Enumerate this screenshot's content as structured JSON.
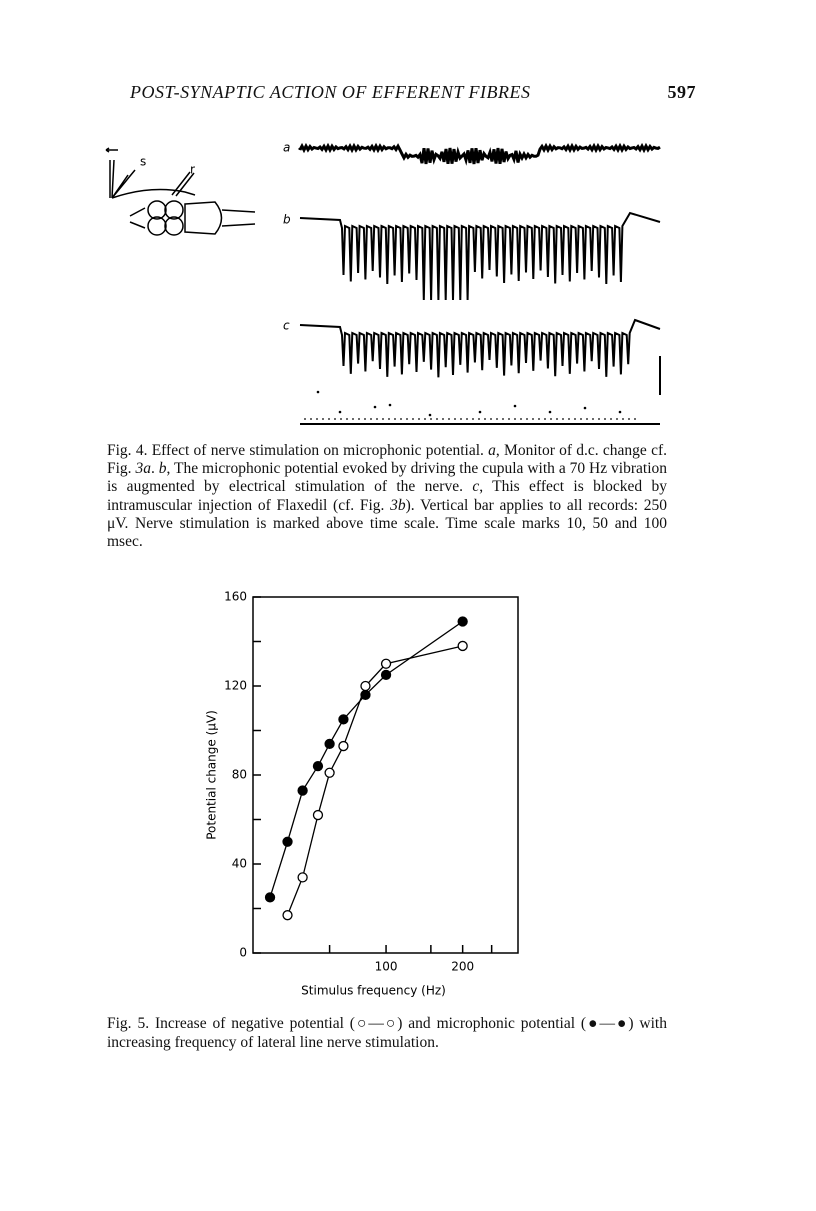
{
  "header": {
    "title": "POST-SYNAPTIC ACTION OF EFFERENT FIBRES",
    "page": "597"
  },
  "figure4": {
    "panel_labels": [
      "a",
      "b",
      "c"
    ],
    "diagram_labels": [
      "s",
      "r"
    ],
    "caption": [
      {
        "text": "Fig. 4. Effect of nerve stimulation on microphonic potential. "
      },
      {
        "text": "a",
        "italic": true
      },
      {
        "text": ", Monitor of d.c. change cf. Fig. "
      },
      {
        "text": "3a",
        "italic": true
      },
      {
        "text": ". "
      },
      {
        "text": "b",
        "italic": true
      },
      {
        "text": ", The microphonic potential evoked by driving the cupula with a 70 Hz vibration is augmented by electrical stimulation of the nerve. "
      },
      {
        "text": "c",
        "italic": true
      },
      {
        "text": ", This effect is blocked by intramuscular injection of Flaxedil (cf. Fig. "
      },
      {
        "text": "3b",
        "italic": true
      },
      {
        "text": "). Vertical bar applies to all records: 250 μV. Nerve stimulation is marked above time scale. Time scale marks 10, 50 and 100 msec."
      }
    ]
  },
  "chart_data": {
    "type": "line",
    "xlabel": "Stimulus frequency (Hz)",
    "ylabel": "Potential change (μV)",
    "log_x": true,
    "xlim": [
      30,
      330
    ],
    "xticks": [
      100,
      200
    ],
    "xminorticks": [
      60,
      150,
      260
    ],
    "ylim": [
      0,
      160
    ],
    "yticks": [
      0,
      40,
      80,
      120,
      160
    ],
    "yminorticks": [
      20,
      60,
      100,
      140
    ],
    "series": [
      {
        "marker": "filled",
        "color": "#000000",
        "x": [
          35,
          41,
          47,
          54,
          60,
          68,
          83,
          100,
          200
        ],
        "values": [
          25,
          50,
          73,
          84,
          94,
          105,
          116,
          125,
          149
        ]
      },
      {
        "marker": "open",
        "color": "#000000",
        "x": [
          41,
          47,
          54,
          60,
          68,
          83,
          100,
          200
        ],
        "values": [
          17,
          34,
          62,
          81,
          93,
          120,
          130,
          138
        ]
      }
    ]
  },
  "figure5": {
    "caption": "Fig. 5. Increase of negative potential (○—○) and microphonic potential (●—●) with increasing frequency of lateral line nerve stimulation."
  }
}
